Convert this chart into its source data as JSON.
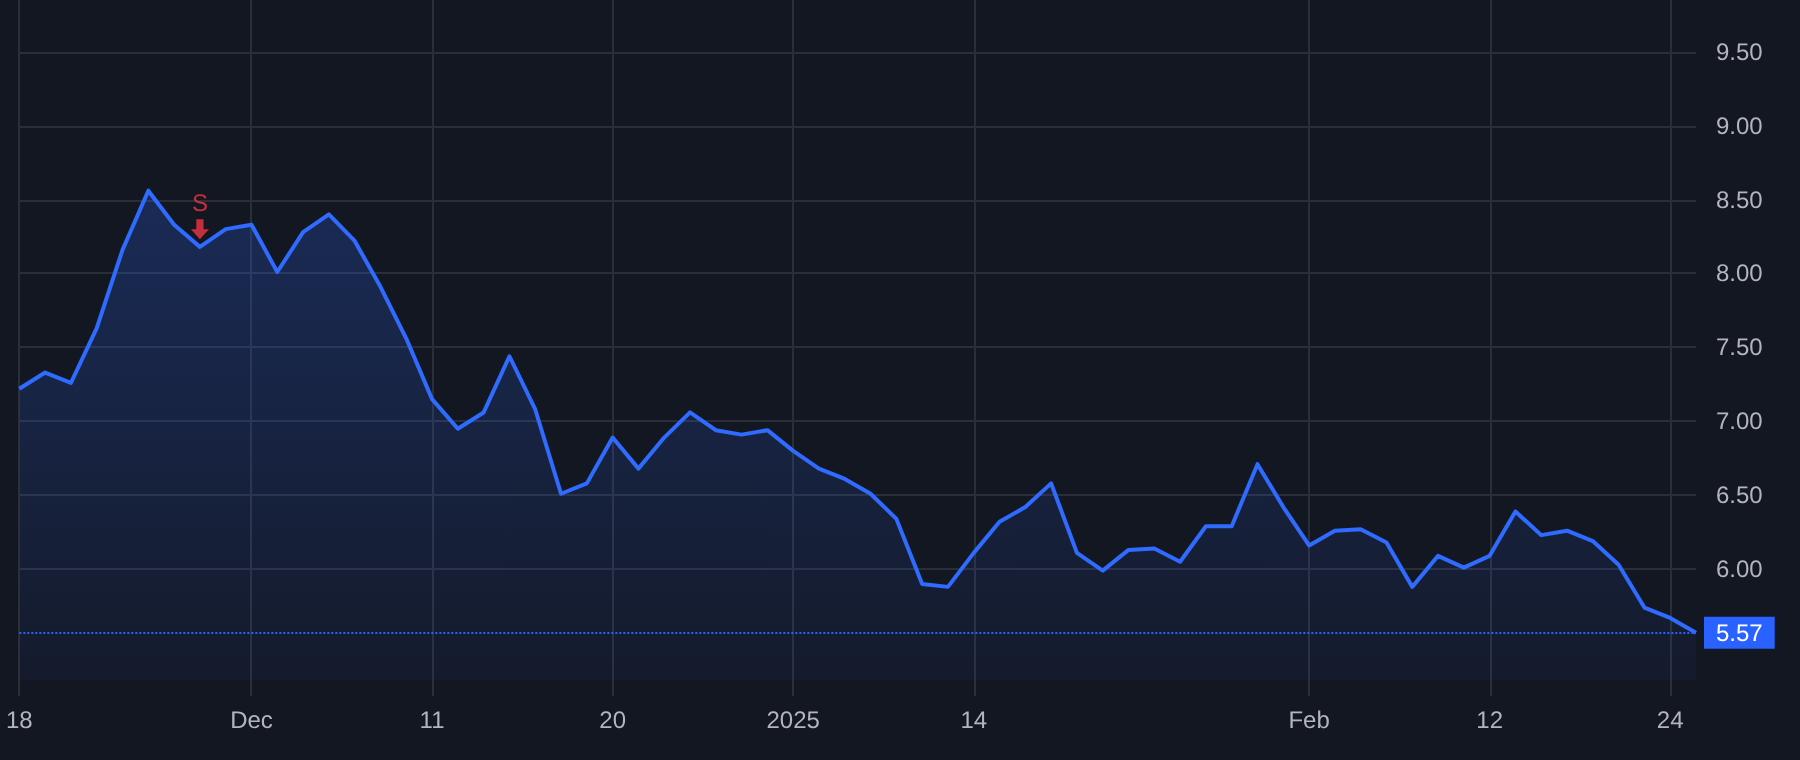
{
  "chart_data": {
    "type": "area",
    "categories": [
      "18",
      null,
      null,
      null,
      null,
      null,
      null,
      null,
      null,
      "Dec",
      null,
      null,
      null,
      null,
      null,
      null,
      "11",
      null,
      null,
      null,
      null,
      null,
      null,
      "20",
      null,
      null,
      null,
      null,
      null,
      null,
      "2025",
      null,
      null,
      null,
      null,
      null,
      null,
      "14",
      null,
      null,
      null,
      null,
      null,
      null,
      null,
      null,
      null,
      null,
      null,
      null,
      "Feb",
      null,
      null,
      null,
      null,
      null,
      null,
      "12",
      null,
      null,
      null,
      null,
      null,
      null,
      "24",
      null
    ],
    "series": [
      {
        "color": "#2f6bff",
        "values": [
          7.22,
          7.33,
          7.26,
          7.63,
          8.16,
          8.56,
          8.33,
          8.18,
          8.3,
          8.33,
          8.01,
          8.28,
          8.4,
          8.22,
          7.91,
          7.56,
          7.15,
          6.95,
          7.06,
          7.44,
          7.08,
          6.51,
          6.58,
          6.89,
          6.68,
          6.89,
          7.06,
          6.94,
          6.91,
          6.94,
          6.8,
          6.68,
          6.61,
          6.51,
          6.34,
          5.9,
          5.88,
          6.11,
          6.32,
          6.42,
          6.58,
          6.11,
          5.99,
          6.13,
          6.14,
          6.05,
          6.29,
          6.29,
          6.71,
          6.42,
          6.16,
          6.26,
          6.27,
          6.18,
          5.88,
          6.09,
          6.01,
          6.09,
          6.39,
          6.23,
          6.26,
          6.19,
          6.03,
          5.74,
          5.67,
          5.57
        ]
      },
      {
        "type": "scatter",
        "color": "#f23645",
        "values": [
          null,
          null,
          null,
          null,
          null,
          null,
          null,
          8.3,
          null,
          null,
          null,
          null,
          null,
          null,
          null,
          null,
          null,
          null,
          null,
          null,
          null,
          null,
          null,
          null,
          null,
          null,
          null,
          null,
          null,
          null,
          null,
          null,
          null,
          null,
          null,
          null,
          null,
          null,
          null,
          null,
          null,
          null,
          null,
          null,
          null,
          null,
          null,
          null,
          null,
          null,
          null,
          null,
          null,
          null,
          null,
          null,
          null,
          null,
          null,
          null,
          null,
          null,
          null,
          null,
          null,
          null
        ]
      }
    ],
    "annotations": [
      "S"
    ],
    "ylim": [
      5.25,
      9.85
    ],
    "yticks": [
      {
        "value": 6,
        "label": "6.00"
      },
      {
        "value": 6.5,
        "label": "6.50"
      },
      {
        "value": 7,
        "label": "7.00"
      },
      {
        "value": 7.5,
        "label": "7.50"
      },
      {
        "value": 8,
        "label": "8.00"
      },
      {
        "value": 8.5,
        "label": "8.50"
      },
      {
        "value": 9,
        "label": "9.00"
      },
      {
        "value": 9.5,
        "label": "9.50"
      }
    ],
    "ref_lines": [
      {
        "axis": "y",
        "value": 5.57,
        "label": "5.57",
        "color": "#2962ff",
        "line_style": "dotted"
      }
    ],
    "grid": true
  }
}
